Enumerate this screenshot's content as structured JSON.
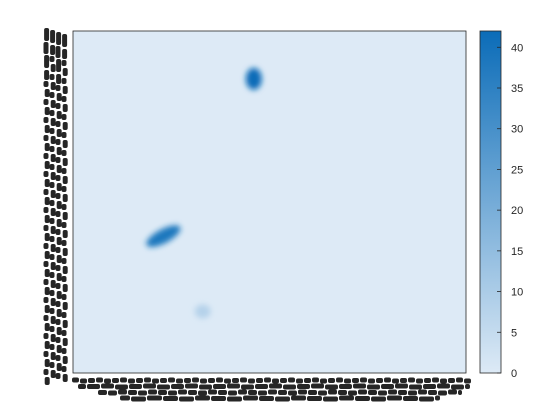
{
  "chart_data": {
    "type": "heatmap",
    "title": "",
    "xlabel": "",
    "ylabel": "",
    "grid": false,
    "legend": "none",
    "colormap": [
      "#ddeaf6",
      "#0b6cb8"
    ],
    "background_color": "#ddeaf6",
    "colorbar": {
      "placement": "right",
      "limits": [
        0,
        42
      ],
      "ticks": [
        0,
        5,
        10,
        15,
        20,
        25,
        30,
        35,
        40
      ]
    },
    "x_tick_labels": "overlapping, illegible",
    "y_tick_labels": "overlapping, illegible",
    "hotspots": [
      {
        "x": 0.46,
        "y": 0.86,
        "value": 42
      },
      {
        "x": 0.23,
        "y": 0.4,
        "value": 38
      },
      {
        "x": 0.33,
        "y": 0.18,
        "value": 8
      }
    ]
  }
}
